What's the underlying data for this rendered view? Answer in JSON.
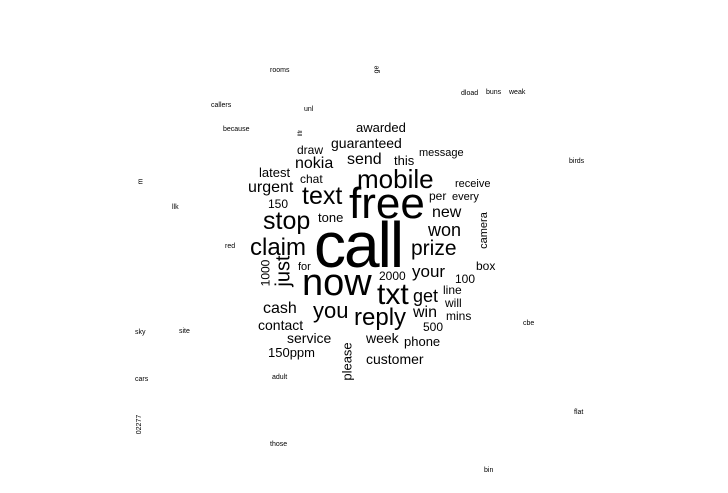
{
  "words": [
    {
      "text": "call",
      "weight": 100
    },
    {
      "text": "free",
      "weight": 72
    },
    {
      "text": "now",
      "weight": 62
    },
    {
      "text": "txt",
      "weight": 50
    },
    {
      "text": "mobile",
      "weight": 44
    },
    {
      "text": "text",
      "weight": 42
    },
    {
      "text": "stop",
      "weight": 40
    },
    {
      "text": "claim",
      "weight": 38
    },
    {
      "text": "reply",
      "weight": 38
    },
    {
      "text": "you",
      "weight": 36
    },
    {
      "text": "prize",
      "weight": 34
    },
    {
      "text": "just",
      "weight": 32
    },
    {
      "text": "get",
      "weight": 30
    },
    {
      "text": "won",
      "weight": 28
    },
    {
      "text": "your",
      "weight": 27
    },
    {
      "text": "new",
      "weight": 26
    },
    {
      "text": "win",
      "weight": 26
    },
    {
      "text": "send",
      "weight": 26
    },
    {
      "text": "cash",
      "weight": 26
    },
    {
      "text": "urgent",
      "weight": 26
    },
    {
      "text": "nokia",
      "weight": 26
    },
    {
      "text": "contact",
      "weight": 22
    },
    {
      "text": "service",
      "weight": 22
    },
    {
      "text": "customer",
      "weight": 22
    },
    {
      "text": "week",
      "weight": 22
    },
    {
      "text": "guaranteed",
      "weight": 22
    },
    {
      "text": "awarded",
      "weight": 20
    },
    {
      "text": "please",
      "weight": 20
    },
    {
      "text": "150ppm",
      "weight": 20
    },
    {
      "text": "phone",
      "weight": 20
    },
    {
      "text": "tone",
      "weight": 20
    },
    {
      "text": "latest",
      "weight": 20
    },
    {
      "text": "this",
      "weight": 20
    },
    {
      "text": "chat",
      "weight": 18
    },
    {
      "text": "draw",
      "weight": 18
    },
    {
      "text": "message",
      "weight": 18
    },
    {
      "text": "receive",
      "weight": 18
    },
    {
      "text": "per",
      "weight": 18
    },
    {
      "text": "every",
      "weight": 16
    },
    {
      "text": "camera",
      "weight": 16
    },
    {
      "text": "box",
      "weight": 18
    },
    {
      "text": "line",
      "weight": 18
    },
    {
      "text": "will",
      "weight": 18
    },
    {
      "text": "mins",
      "weight": 18
    },
    {
      "text": "500",
      "weight": 18
    },
    {
      "text": "100",
      "weight": 18
    },
    {
      "text": "2000",
      "weight": 18
    },
    {
      "text": "1000",
      "weight": 16
    },
    {
      "text": "150",
      "weight": 18
    },
    {
      "text": "for",
      "weight": 16
    },
    {
      "text": "rooms",
      "weight": 8
    },
    {
      "text": "ge",
      "weight": 8
    },
    {
      "text": "dload",
      "weight": 8
    },
    {
      "text": "buns",
      "weight": 8
    },
    {
      "text": "weak",
      "weight": 8
    },
    {
      "text": "callers",
      "weight": 8
    },
    {
      "text": "unl",
      "weight": 8
    },
    {
      "text": "because",
      "weight": 8
    },
    {
      "text": "birds",
      "weight": 8
    },
    {
      "text": "llk",
      "weight": 8
    },
    {
      "text": "red",
      "weight": 8
    },
    {
      "text": "sky",
      "weight": 8
    },
    {
      "text": "site",
      "weight": 8
    },
    {
      "text": "cbe",
      "weight": 8
    },
    {
      "text": "cars",
      "weight": 8
    },
    {
      "text": "adult",
      "weight": 8
    },
    {
      "text": "02277",
      "weight": 8
    },
    {
      "text": "flat",
      "weight": 8
    },
    {
      "text": "those",
      "weight": 8
    },
    {
      "text": "bin",
      "weight": 8
    },
    {
      "text": "llfr",
      "weight": 8
    },
    {
      "text": "m",
      "weight": 8
    }
  ]
}
